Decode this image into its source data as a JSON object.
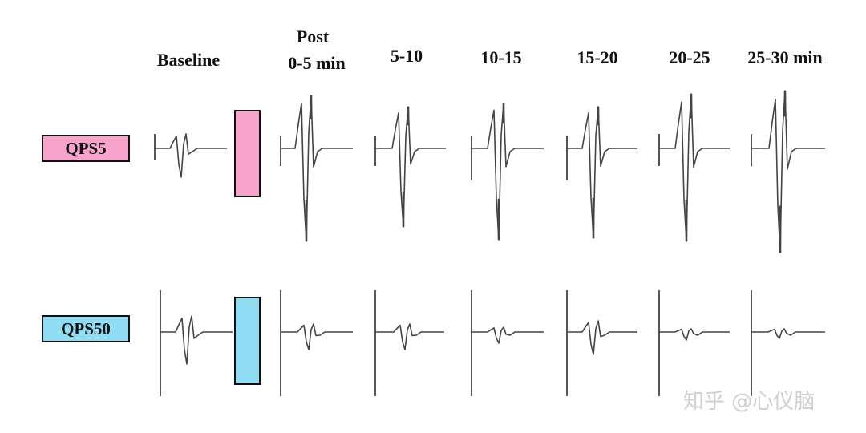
{
  "column_titles": {
    "baseline": "Baseline",
    "post_line1": "Post",
    "post_line2": "0-5 min",
    "t1": "5-10",
    "t2": "10-15",
    "t3": "15-20",
    "t4": "20-25",
    "t5": "25-30 min"
  },
  "rows": {
    "qps5": {
      "label": "QPS5",
      "color": "#f7a3cc"
    },
    "qps50": {
      "label": "QPS50",
      "color": "#8fdcf3"
    }
  },
  "watermark": "知乎 @心仪脑",
  "colors": {
    "trace": "#444444",
    "text": "#111111"
  }
}
